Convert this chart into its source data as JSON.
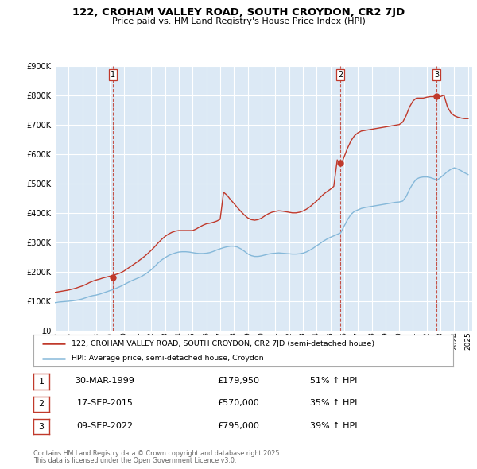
{
  "title": "122, CROHAM VALLEY ROAD, SOUTH CROYDON, CR2 7JD",
  "subtitle": "Price paid vs. HM Land Registry's House Price Index (HPI)",
  "bg_color": "#dce9f5",
  "red_color": "#c0392b",
  "blue_color": "#85b8d9",
  "ylim": [
    0,
    900000
  ],
  "yticks": [
    0,
    100000,
    200000,
    300000,
    400000,
    500000,
    600000,
    700000,
    800000,
    900000
  ],
  "legend_label_red": "122, CROHAM VALLEY ROAD, SOUTH CROYDON, CR2 7JD (semi-detached house)",
  "legend_label_blue": "HPI: Average price, semi-detached house, Croydon",
  "sales": [
    {
      "label": "1",
      "date": "30-MAR-1999",
      "price": 179950,
      "price_str": "£179,950",
      "pct": "51%",
      "year": 1999.23
    },
    {
      "label": "2",
      "date": "17-SEP-2015",
      "price": 570000,
      "price_str": "£570,000",
      "pct": "35%",
      "year": 2015.72
    },
    {
      "label": "3",
      "date": "09-SEP-2022",
      "price": 795000,
      "price_str": "£795,000",
      "pct": "39%",
      "year": 2022.7
    }
  ],
  "footer_line1": "Contains HM Land Registry data © Crown copyright and database right 2025.",
  "footer_line2": "This data is licensed under the Open Government Licence v3.0.",
  "hpi_x": [
    1995.0,
    1995.25,
    1995.5,
    1995.75,
    1996.0,
    1996.25,
    1996.5,
    1996.75,
    1997.0,
    1997.25,
    1997.5,
    1997.75,
    1998.0,
    1998.25,
    1998.5,
    1998.75,
    1999.0,
    1999.25,
    1999.5,
    1999.75,
    2000.0,
    2000.25,
    2000.5,
    2000.75,
    2001.0,
    2001.25,
    2001.5,
    2001.75,
    2002.0,
    2002.25,
    2002.5,
    2002.75,
    2003.0,
    2003.25,
    2003.5,
    2003.75,
    2004.0,
    2004.25,
    2004.5,
    2004.75,
    2005.0,
    2005.25,
    2005.5,
    2005.75,
    2006.0,
    2006.25,
    2006.5,
    2006.75,
    2007.0,
    2007.25,
    2007.5,
    2007.75,
    2008.0,
    2008.25,
    2008.5,
    2008.75,
    2009.0,
    2009.25,
    2009.5,
    2009.75,
    2010.0,
    2010.25,
    2010.5,
    2010.75,
    2011.0,
    2011.25,
    2011.5,
    2011.75,
    2012.0,
    2012.25,
    2012.5,
    2012.75,
    2013.0,
    2013.25,
    2013.5,
    2013.75,
    2014.0,
    2014.25,
    2014.5,
    2014.75,
    2015.0,
    2015.25,
    2015.5,
    2015.75,
    2016.0,
    2016.25,
    2016.5,
    2016.75,
    2017.0,
    2017.25,
    2017.5,
    2017.75,
    2018.0,
    2018.25,
    2018.5,
    2018.75,
    2019.0,
    2019.25,
    2019.5,
    2019.75,
    2020.0,
    2020.25,
    2020.5,
    2020.75,
    2021.0,
    2021.25,
    2021.5,
    2021.75,
    2022.0,
    2022.25,
    2022.5,
    2022.75,
    2023.0,
    2023.25,
    2023.5,
    2023.75,
    2024.0,
    2024.25,
    2024.5,
    2024.75,
    2025.0
  ],
  "hpi_y": [
    95000,
    97000,
    98000,
    99000,
    100000,
    101000,
    103000,
    105000,
    108000,
    112000,
    116000,
    119000,
    121000,
    124000,
    128000,
    132000,
    136000,
    140000,
    145000,
    150000,
    156000,
    162000,
    168000,
    173000,
    178000,
    183000,
    190000,
    198000,
    207000,
    218000,
    230000,
    240000,
    248000,
    255000,
    260000,
    264000,
    267000,
    268000,
    268000,
    267000,
    265000,
    263000,
    262000,
    262000,
    263000,
    265000,
    269000,
    274000,
    278000,
    282000,
    285000,
    287000,
    287000,
    284000,
    278000,
    270000,
    261000,
    255000,
    252000,
    252000,
    254000,
    257000,
    260000,
    262000,
    263000,
    264000,
    263000,
    262000,
    261000,
    260000,
    260000,
    261000,
    263000,
    267000,
    273000,
    280000,
    288000,
    296000,
    304000,
    311000,
    317000,
    322000,
    327000,
    332000,
    355000,
    377000,
    395000,
    405000,
    410000,
    415000,
    418000,
    420000,
    422000,
    424000,
    426000,
    428000,
    430000,
    432000,
    434000,
    436000,
    437000,
    440000,
    455000,
    480000,
    500000,
    515000,
    520000,
    522000,
    522000,
    520000,
    516000,
    511000,
    520000,
    530000,
    540000,
    548000,
    553000,
    549000,
    543000,
    536000,
    530000
  ],
  "red_x": [
    1995.0,
    1995.25,
    1995.5,
    1995.75,
    1996.0,
    1996.25,
    1996.5,
    1996.75,
    1997.0,
    1997.25,
    1997.5,
    1997.75,
    1998.0,
    1998.25,
    1998.5,
    1998.75,
    1999.0,
    1999.25,
    1999.5,
    1999.75,
    2000.0,
    2000.25,
    2000.5,
    2000.75,
    2001.0,
    2001.25,
    2001.5,
    2001.75,
    2002.0,
    2002.25,
    2002.5,
    2002.75,
    2003.0,
    2003.25,
    2003.5,
    2003.75,
    2004.0,
    2004.25,
    2004.5,
    2004.75,
    2005.0,
    2005.25,
    2005.5,
    2005.75,
    2006.0,
    2006.25,
    2006.5,
    2006.75,
    2007.0,
    2007.25,
    2007.5,
    2007.75,
    2008.0,
    2008.25,
    2008.5,
    2008.75,
    2009.0,
    2009.25,
    2009.5,
    2009.75,
    2010.0,
    2010.25,
    2010.5,
    2010.75,
    2011.0,
    2011.25,
    2011.5,
    2011.75,
    2012.0,
    2012.25,
    2012.5,
    2012.75,
    2013.0,
    2013.25,
    2013.5,
    2013.75,
    2014.0,
    2014.25,
    2014.5,
    2014.75,
    2015.0,
    2015.25,
    2015.5,
    2015.75,
    2016.0,
    2016.25,
    2016.5,
    2016.75,
    2017.0,
    2017.25,
    2017.5,
    2017.75,
    2018.0,
    2018.25,
    2018.5,
    2018.75,
    2019.0,
    2019.25,
    2019.5,
    2019.75,
    2020.0,
    2020.25,
    2020.5,
    2020.75,
    2021.0,
    2021.25,
    2021.5,
    2021.75,
    2022.0,
    2022.25,
    2022.5,
    2022.75,
    2023.0,
    2023.25,
    2023.5,
    2023.75,
    2024.0,
    2024.25,
    2024.5,
    2024.75,
    2025.0
  ],
  "red_y": [
    130000,
    132000,
    134000,
    136000,
    138000,
    141000,
    144000,
    148000,
    152000,
    157000,
    163000,
    168000,
    172000,
    175000,
    179000,
    182000,
    185000,
    188000,
    192000,
    196000,
    202000,
    210000,
    218000,
    226000,
    234000,
    243000,
    252000,
    262000,
    273000,
    285000,
    298000,
    310000,
    320000,
    328000,
    334000,
    338000,
    340000,
    340000,
    340000,
    340000,
    340000,
    345000,
    352000,
    358000,
    363000,
    365000,
    368000,
    372000,
    378000,
    470000,
    460000,
    445000,
    432000,
    418000,
    405000,
    393000,
    383000,
    377000,
    375000,
    377000,
    382000,
    390000,
    397000,
    402000,
    405000,
    407000,
    406000,
    404000,
    402000,
    400000,
    400000,
    402000,
    406000,
    412000,
    420000,
    430000,
    440000,
    452000,
    463000,
    472000,
    480000,
    490000,
    580000,
    560000,
    590000,
    620000,
    645000,
    662000,
    672000,
    678000,
    680000,
    682000,
    684000,
    686000,
    688000,
    690000,
    692000,
    694000,
    696000,
    698000,
    700000,
    708000,
    730000,
    760000,
    780000,
    790000,
    790000,
    790000,
    793000,
    795000,
    795000,
    793000,
    795000,
    800000,
    760000,
    740000,
    730000,
    725000,
    722000,
    720000,
    720000
  ]
}
